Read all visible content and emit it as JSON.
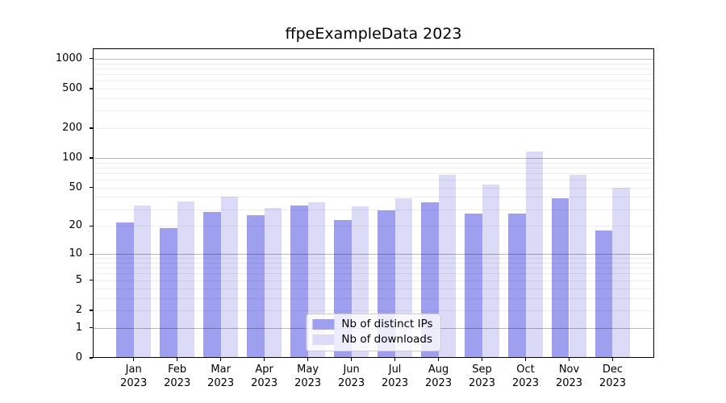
{
  "chart": {
    "title": "ffpeExampleData 2023",
    "background_color": "#ffffff"
  },
  "chart_data": {
    "type": "bar",
    "title": "ffpeExampleData 2023",
    "categories": [
      "Jan 2023",
      "Feb 2023",
      "Mar 2023",
      "Apr 2023",
      "May 2023",
      "Jun 2023",
      "Jul 2023",
      "Aug 2023",
      "Sep 2023",
      "Oct 2023",
      "Nov 2023",
      "Dec 2023"
    ],
    "series": [
      {
        "name": "Nb of distinct IPs",
        "color": "#9f9ff0",
        "values": [
          22,
          19,
          28,
          26,
          33,
          23,
          29,
          35,
          27,
          27,
          39,
          18
        ]
      },
      {
        "name": "Nb of downloads",
        "color": "#dbdbf8",
        "values": [
          33,
          36,
          40,
          31,
          35,
          32,
          39,
          68,
          54,
          117,
          68,
          50
        ]
      }
    ],
    "xlabel": "",
    "ylabel": "",
    "yscale": "log1p",
    "yticks": [
      0,
      1,
      2,
      5,
      10,
      20,
      50,
      100,
      200,
      500,
      1000
    ],
    "ylim": [
      0,
      1270
    ],
    "grid": "on",
    "grid_major_values": [
      1,
      10,
      100,
      1000
    ],
    "legend_position": "lower center"
  }
}
